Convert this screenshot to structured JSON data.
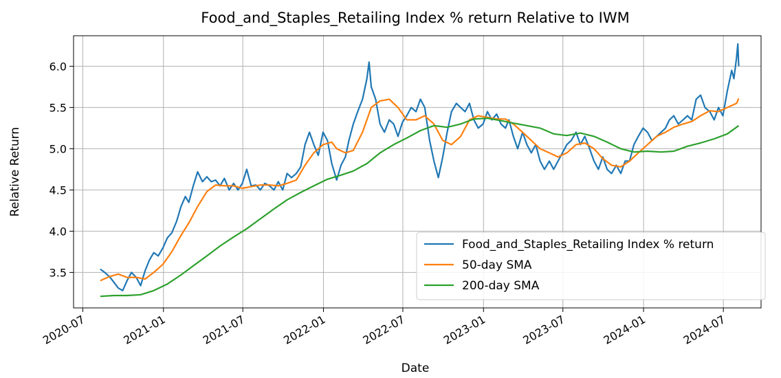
{
  "chart_data": {
    "type": "line",
    "title": "Food_and_Staples_Retailing Index % return Relative to IWM",
    "xlabel": "Date",
    "ylabel": "Relative Return",
    "xlim": [
      "2020-06-10",
      "2024-09-25"
    ],
    "ylim": [
      3.07,
      6.37
    ],
    "grid": true,
    "legend_position": "lower-right",
    "x_ticks": [
      "2020-07",
      "2021-01",
      "2021-07",
      "2022-01",
      "2022-07",
      "2023-01",
      "2023-07",
      "2024-01",
      "2024-07"
    ],
    "y_ticks": [
      "3.5",
      "4.0",
      "4.5",
      "5.0",
      "5.5",
      "6.0"
    ],
    "series": [
      {
        "name": "Food_and_Staples_Retailing Index % return",
        "color": "#1f77b4",
        "points": [
          [
            "2020-08-10",
            3.54
          ],
          [
            "2020-08-20",
            3.5
          ],
          [
            "2020-08-31",
            3.45
          ],
          [
            "2020-09-10",
            3.38
          ],
          [
            "2020-09-20",
            3.31
          ],
          [
            "2020-09-30",
            3.28
          ],
          [
            "2020-10-10",
            3.4
          ],
          [
            "2020-10-20",
            3.5
          ],
          [
            "2020-10-31",
            3.44
          ],
          [
            "2020-11-10",
            3.34
          ],
          [
            "2020-11-20",
            3.52
          ],
          [
            "2020-11-30",
            3.65
          ],
          [
            "2020-12-10",
            3.74
          ],
          [
            "2020-12-20",
            3.7
          ],
          [
            "2020-12-31",
            3.8
          ],
          [
            "2021-01-10",
            3.92
          ],
          [
            "2021-01-20",
            3.98
          ],
          [
            "2021-01-31",
            4.12
          ],
          [
            "2021-02-10",
            4.3
          ],
          [
            "2021-02-20",
            4.42
          ],
          [
            "2021-02-28",
            4.35
          ],
          [
            "2021-03-10",
            4.55
          ],
          [
            "2021-03-20",
            4.72
          ],
          [
            "2021-03-31",
            4.6
          ],
          [
            "2021-04-10",
            4.66
          ],
          [
            "2021-04-20",
            4.6
          ],
          [
            "2021-04-30",
            4.62
          ],
          [
            "2021-05-10",
            4.55
          ],
          [
            "2021-05-20",
            4.64
          ],
          [
            "2021-05-31",
            4.5
          ],
          [
            "2021-06-10",
            4.58
          ],
          [
            "2021-06-20",
            4.5
          ],
          [
            "2021-06-30",
            4.58
          ],
          [
            "2021-07-10",
            4.75
          ],
          [
            "2021-07-20",
            4.55
          ],
          [
            "2021-07-31",
            4.56
          ],
          [
            "2021-08-10",
            4.5
          ],
          [
            "2021-08-20",
            4.58
          ],
          [
            "2021-08-31",
            4.55
          ],
          [
            "2021-09-10",
            4.5
          ],
          [
            "2021-09-20",
            4.6
          ],
          [
            "2021-09-30",
            4.5
          ],
          [
            "2021-10-10",
            4.7
          ],
          [
            "2021-10-20",
            4.65
          ],
          [
            "2021-10-31",
            4.7
          ],
          [
            "2021-11-10",
            4.78
          ],
          [
            "2021-11-20",
            5.05
          ],
          [
            "2021-11-30",
            5.2
          ],
          [
            "2021-12-10",
            5.05
          ],
          [
            "2021-12-20",
            4.92
          ],
          [
            "2021-12-31",
            5.2
          ],
          [
            "2022-01-10",
            5.1
          ],
          [
            "2022-01-20",
            4.82
          ],
          [
            "2022-01-31",
            4.62
          ],
          [
            "2022-02-10",
            4.8
          ],
          [
            "2022-02-20",
            4.9
          ],
          [
            "2022-02-28",
            5.1
          ],
          [
            "2022-03-10",
            5.3
          ],
          [
            "2022-03-20",
            5.45
          ],
          [
            "2022-03-31",
            5.6
          ],
          [
            "2022-04-10",
            5.85
          ],
          [
            "2022-04-15",
            6.05
          ],
          [
            "2022-04-20",
            5.75
          ],
          [
            "2022-04-30",
            5.6
          ],
          [
            "2022-05-10",
            5.3
          ],
          [
            "2022-05-20",
            5.2
          ],
          [
            "2022-05-31",
            5.35
          ],
          [
            "2022-06-10",
            5.3
          ],
          [
            "2022-06-20",
            5.15
          ],
          [
            "2022-06-30",
            5.32
          ],
          [
            "2022-07-10",
            5.4
          ],
          [
            "2022-07-20",
            5.5
          ],
          [
            "2022-07-31",
            5.45
          ],
          [
            "2022-08-10",
            5.6
          ],
          [
            "2022-08-20",
            5.5
          ],
          [
            "2022-08-31",
            5.1
          ],
          [
            "2022-09-10",
            4.85
          ],
          [
            "2022-09-20",
            4.65
          ],
          [
            "2022-09-30",
            4.9
          ],
          [
            "2022-10-10",
            5.2
          ],
          [
            "2022-10-20",
            5.45
          ],
          [
            "2022-10-31",
            5.55
          ],
          [
            "2022-11-10",
            5.5
          ],
          [
            "2022-11-20",
            5.45
          ],
          [
            "2022-11-30",
            5.55
          ],
          [
            "2022-12-10",
            5.35
          ],
          [
            "2022-12-20",
            5.25
          ],
          [
            "2022-12-31",
            5.3
          ],
          [
            "2023-01-10",
            5.45
          ],
          [
            "2023-01-20",
            5.35
          ],
          [
            "2023-01-31",
            5.42
          ],
          [
            "2023-02-10",
            5.3
          ],
          [
            "2023-02-20",
            5.25
          ],
          [
            "2023-02-28",
            5.35
          ],
          [
            "2023-03-10",
            5.15
          ],
          [
            "2023-03-20",
            5.0
          ],
          [
            "2023-03-31",
            5.2
          ],
          [
            "2023-04-10",
            5.05
          ],
          [
            "2023-04-20",
            4.95
          ],
          [
            "2023-04-30",
            5.05
          ],
          [
            "2023-05-10",
            4.85
          ],
          [
            "2023-05-20",
            4.75
          ],
          [
            "2023-05-31",
            4.85
          ],
          [
            "2023-06-10",
            4.75
          ],
          [
            "2023-06-20",
            4.85
          ],
          [
            "2023-06-30",
            4.95
          ],
          [
            "2023-07-10",
            5.05
          ],
          [
            "2023-07-20",
            5.1
          ],
          [
            "2023-07-31",
            5.2
          ],
          [
            "2023-08-10",
            5.05
          ],
          [
            "2023-08-20",
            5.15
          ],
          [
            "2023-08-31",
            5.0
          ],
          [
            "2023-09-10",
            4.85
          ],
          [
            "2023-09-20",
            4.75
          ],
          [
            "2023-09-30",
            4.9
          ],
          [
            "2023-10-10",
            4.75
          ],
          [
            "2023-10-20",
            4.7
          ],
          [
            "2023-10-31",
            4.8
          ],
          [
            "2023-11-10",
            4.7
          ],
          [
            "2023-11-20",
            4.85
          ],
          [
            "2023-11-30",
            4.85
          ],
          [
            "2023-12-10",
            5.05
          ],
          [
            "2023-12-20",
            5.15
          ],
          [
            "2023-12-31",
            5.25
          ],
          [
            "2024-01-10",
            5.2
          ],
          [
            "2024-01-20",
            5.1
          ],
          [
            "2024-01-31",
            5.15
          ],
          [
            "2024-02-10",
            5.2
          ],
          [
            "2024-02-20",
            5.25
          ],
          [
            "2024-02-29",
            5.35
          ],
          [
            "2024-03-10",
            5.4
          ],
          [
            "2024-03-20",
            5.3
          ],
          [
            "2024-03-31",
            5.35
          ],
          [
            "2024-04-10",
            5.4
          ],
          [
            "2024-04-20",
            5.35
          ],
          [
            "2024-04-30",
            5.6
          ],
          [
            "2024-05-10",
            5.65
          ],
          [
            "2024-05-20",
            5.5
          ],
          [
            "2024-05-31",
            5.45
          ],
          [
            "2024-06-10",
            5.35
          ],
          [
            "2024-06-20",
            5.5
          ],
          [
            "2024-06-30",
            5.4
          ],
          [
            "2024-07-10",
            5.7
          ],
          [
            "2024-07-20",
            5.95
          ],
          [
            "2024-07-25",
            5.85
          ],
          [
            "2024-07-31",
            6.1
          ],
          [
            "2024-08-03",
            6.27
          ],
          [
            "2024-08-05",
            6.0
          ]
        ]
      },
      {
        "name": "50-day SMA",
        "color": "#ff7f0e",
        "points": [
          [
            "2020-08-10",
            3.4
          ],
          [
            "2020-08-31",
            3.45
          ],
          [
            "2020-09-20",
            3.48
          ],
          [
            "2020-10-10",
            3.44
          ],
          [
            "2020-10-31",
            3.44
          ],
          [
            "2020-11-20",
            3.42
          ],
          [
            "2020-12-10",
            3.5
          ],
          [
            "2020-12-31",
            3.6
          ],
          [
            "2021-01-20",
            3.75
          ],
          [
            "2021-02-10",
            3.95
          ],
          [
            "2021-02-28",
            4.1
          ],
          [
            "2021-03-20",
            4.3
          ],
          [
            "2021-04-10",
            4.48
          ],
          [
            "2021-04-30",
            4.56
          ],
          [
            "2021-05-20",
            4.55
          ],
          [
            "2021-06-10",
            4.55
          ],
          [
            "2021-06-30",
            4.52
          ],
          [
            "2021-07-20",
            4.54
          ],
          [
            "2021-08-10",
            4.56
          ],
          [
            "2021-08-31",
            4.56
          ],
          [
            "2021-09-20",
            4.55
          ],
          [
            "2021-10-10",
            4.58
          ],
          [
            "2021-10-31",
            4.62
          ],
          [
            "2021-11-20",
            4.8
          ],
          [
            "2021-12-10",
            4.95
          ],
          [
            "2021-12-31",
            5.05
          ],
          [
            "2022-01-20",
            5.08
          ],
          [
            "2022-01-31",
            5.0
          ],
          [
            "2022-02-20",
            4.95
          ],
          [
            "2022-03-10",
            4.98
          ],
          [
            "2022-03-31",
            5.2
          ],
          [
            "2022-04-20",
            5.5
          ],
          [
            "2022-05-10",
            5.58
          ],
          [
            "2022-05-31",
            5.6
          ],
          [
            "2022-06-20",
            5.5
          ],
          [
            "2022-07-10",
            5.35
          ],
          [
            "2022-07-31",
            5.35
          ],
          [
            "2022-08-20",
            5.4
          ],
          [
            "2022-09-10",
            5.3
          ],
          [
            "2022-09-30",
            5.1
          ],
          [
            "2022-10-20",
            5.05
          ],
          [
            "2022-11-10",
            5.15
          ],
          [
            "2022-11-30",
            5.35
          ],
          [
            "2022-12-20",
            5.4
          ],
          [
            "2023-01-10",
            5.38
          ],
          [
            "2023-01-31",
            5.36
          ],
          [
            "2023-02-20",
            5.36
          ],
          [
            "2023-03-10",
            5.3
          ],
          [
            "2023-03-31",
            5.2
          ],
          [
            "2023-04-20",
            5.1
          ],
          [
            "2023-05-10",
            5.0
          ],
          [
            "2023-05-31",
            4.95
          ],
          [
            "2023-06-20",
            4.9
          ],
          [
            "2023-07-10",
            4.95
          ],
          [
            "2023-07-31",
            5.05
          ],
          [
            "2023-08-20",
            5.07
          ],
          [
            "2023-09-10",
            5.0
          ],
          [
            "2023-09-30",
            4.88
          ],
          [
            "2023-10-20",
            4.8
          ],
          [
            "2023-11-10",
            4.78
          ],
          [
            "2023-11-30",
            4.85
          ],
          [
            "2023-12-20",
            4.95
          ],
          [
            "2024-01-10",
            5.05
          ],
          [
            "2024-01-31",
            5.15
          ],
          [
            "2024-02-20",
            5.2
          ],
          [
            "2024-03-10",
            5.26
          ],
          [
            "2024-03-31",
            5.3
          ],
          [
            "2024-04-20",
            5.33
          ],
          [
            "2024-05-10",
            5.4
          ],
          [
            "2024-05-31",
            5.46
          ],
          [
            "2024-06-20",
            5.45
          ],
          [
            "2024-07-10",
            5.5
          ],
          [
            "2024-07-31",
            5.55
          ],
          [
            "2024-08-05",
            5.61
          ]
        ]
      },
      {
        "name": "200-day SMA",
        "color": "#2ca02c",
        "points": [
          [
            "2020-08-10",
            3.21
          ],
          [
            "2020-09-10",
            3.22
          ],
          [
            "2020-10-10",
            3.22
          ],
          [
            "2020-11-10",
            3.23
          ],
          [
            "2020-12-10",
            3.28
          ],
          [
            "2021-01-10",
            3.36
          ],
          [
            "2021-02-10",
            3.47
          ],
          [
            "2021-03-10",
            3.58
          ],
          [
            "2021-04-10",
            3.7
          ],
          [
            "2021-05-10",
            3.82
          ],
          [
            "2021-06-10",
            3.93
          ],
          [
            "2021-07-10",
            4.03
          ],
          [
            "2021-08-10",
            4.15
          ],
          [
            "2021-09-10",
            4.27
          ],
          [
            "2021-10-10",
            4.38
          ],
          [
            "2021-11-10",
            4.47
          ],
          [
            "2021-12-10",
            4.55
          ],
          [
            "2022-01-10",
            4.63
          ],
          [
            "2022-02-10",
            4.68
          ],
          [
            "2022-03-10",
            4.73
          ],
          [
            "2022-04-10",
            4.82
          ],
          [
            "2022-05-10",
            4.95
          ],
          [
            "2022-06-10",
            5.05
          ],
          [
            "2022-07-10",
            5.13
          ],
          [
            "2022-08-10",
            5.22
          ],
          [
            "2022-09-10",
            5.28
          ],
          [
            "2022-10-10",
            5.26
          ],
          [
            "2022-11-10",
            5.3
          ],
          [
            "2022-12-10",
            5.36
          ],
          [
            "2023-01-10",
            5.37
          ],
          [
            "2023-02-10",
            5.34
          ],
          [
            "2023-03-10",
            5.31
          ],
          [
            "2023-04-10",
            5.28
          ],
          [
            "2023-05-10",
            5.25
          ],
          [
            "2023-06-10",
            5.18
          ],
          [
            "2023-07-10",
            5.16
          ],
          [
            "2023-08-10",
            5.19
          ],
          [
            "2023-09-10",
            5.15
          ],
          [
            "2023-10-10",
            5.08
          ],
          [
            "2023-11-10",
            5.0
          ],
          [
            "2023-12-10",
            4.96
          ],
          [
            "2024-01-10",
            4.97
          ],
          [
            "2024-02-10",
            4.96
          ],
          [
            "2024-03-10",
            4.97
          ],
          [
            "2024-04-10",
            5.03
          ],
          [
            "2024-05-10",
            5.07
          ],
          [
            "2024-06-10",
            5.12
          ],
          [
            "2024-07-10",
            5.18
          ],
          [
            "2024-08-05",
            5.28
          ]
        ]
      }
    ]
  }
}
